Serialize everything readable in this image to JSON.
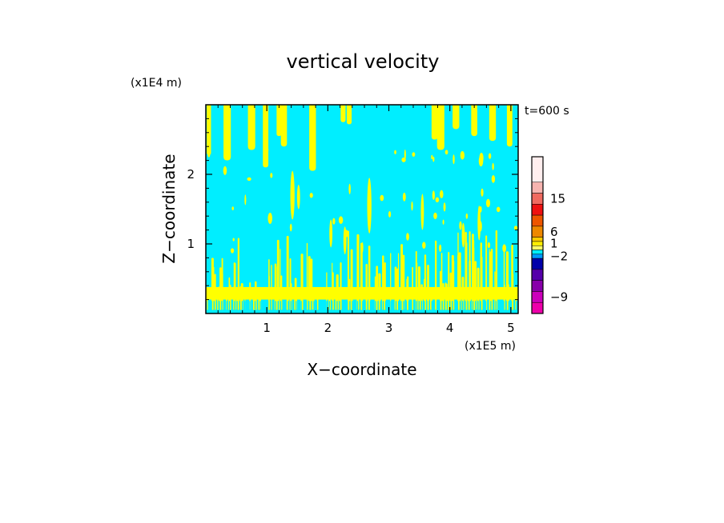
{
  "chart_data": {
    "type": "heatmap",
    "title": "vertical velocity",
    "time_label": "t=600 s",
    "xlabel": "X−coordinate",
    "ylabel": "Z−coordinate",
    "x_unit_label": "(x1E5 m)",
    "y_unit_label": "(x1E4 m)",
    "xlim": [
      0,
      5.12
    ],
    "ylim": [
      0,
      3.0
    ],
    "x_ticks": [
      {
        "value": 1,
        "label": "1"
      },
      {
        "value": 2,
        "label": "2"
      },
      {
        "value": 3,
        "label": "3"
      },
      {
        "value": 4,
        "label": "4"
      },
      {
        "value": 5,
        "label": "5"
      }
    ],
    "y_ticks": [
      {
        "value": 1,
        "label": "1"
      },
      {
        "value": 2,
        "label": "2"
      }
    ],
    "field_colors": {
      "background": "#00eeff",
      "updraft": "#ffff00"
    },
    "tall_plumes": [
      {
        "x": 0.05,
        "top": 3.0,
        "bottom": 2.28,
        "w": 0.07
      },
      {
        "x": 0.35,
        "top": 3.0,
        "bottom": 2.2,
        "w": 0.12
      },
      {
        "x": 0.75,
        "top": 3.0,
        "bottom": 2.35,
        "w": 0.12
      },
      {
        "x": 0.98,
        "top": 3.0,
        "bottom": 2.1,
        "w": 0.09
      },
      {
        "x": 1.2,
        "top": 3.0,
        "bottom": 2.55,
        "w": 0.08
      },
      {
        "x": 1.28,
        "top": 3.0,
        "bottom": 2.4,
        "w": 0.1
      },
      {
        "x": 1.75,
        "top": 3.0,
        "bottom": 2.05,
        "w": 0.11
      },
      {
        "x": 2.25,
        "top": 3.0,
        "bottom": 2.75,
        "w": 0.08
      },
      {
        "x": 2.35,
        "top": 3.0,
        "bottom": 2.72,
        "w": 0.08
      },
      {
        "x": 3.75,
        "top": 3.0,
        "bottom": 2.5,
        "w": 0.1
      },
      {
        "x": 3.85,
        "top": 3.0,
        "bottom": 2.35,
        "w": 0.12
      },
      {
        "x": 4.1,
        "top": 3.0,
        "bottom": 2.65,
        "w": 0.11
      },
      {
        "x": 4.4,
        "top": 3.0,
        "bottom": 2.55,
        "w": 0.1
      },
      {
        "x": 4.7,
        "top": 3.0,
        "bottom": 2.48,
        "w": 0.11
      },
      {
        "x": 4.98,
        "top": 3.0,
        "bottom": 2.4,
        "w": 0.09
      }
    ],
    "mid_plumes": [
      {
        "x": 1.42,
        "top": 2.05,
        "bottom": 1.35,
        "w": 0.07
      },
      {
        "x": 1.52,
        "top": 1.85,
        "bottom": 1.5,
        "w": 0.05
      },
      {
        "x": 2.05,
        "top": 1.35,
        "bottom": 0.95,
        "w": 0.05
      },
      {
        "x": 2.28,
        "top": 1.25,
        "bottom": 0.85,
        "w": 0.05
      },
      {
        "x": 2.68,
        "top": 1.95,
        "bottom": 1.15,
        "w": 0.07
      },
      {
        "x": 3.55,
        "top": 1.72,
        "bottom": 1.2,
        "w": 0.05
      },
      {
        "x": 4.22,
        "top": 1.3,
        "bottom": 0.95,
        "w": 0.05
      },
      {
        "x": 4.48,
        "top": 1.55,
        "bottom": 1.05,
        "w": 0.05
      }
    ],
    "colorbar": {
      "colors": [
        "#ffeeee",
        "#f7b4b0",
        "#f06a60",
        "#ee1111",
        "#ee5500",
        "#ee8800",
        "#ffcc00",
        "#ffee00",
        "#ffff66",
        "#00eeff",
        "#0099ff",
        "#0000aa",
        "#5500aa",
        "#8800aa",
        "#cc00bb",
        "#ee00aa"
      ],
      "tick_labels": [
        {
          "label": "15",
          "slot": 2
        },
        {
          "label": "6",
          "slot": 5
        },
        {
          "label": "1",
          "slot": 7.5
        },
        {
          "label": "−2",
          "slot": 10
        },
        {
          "label": "−9",
          "slot": 14
        }
      ]
    }
  }
}
